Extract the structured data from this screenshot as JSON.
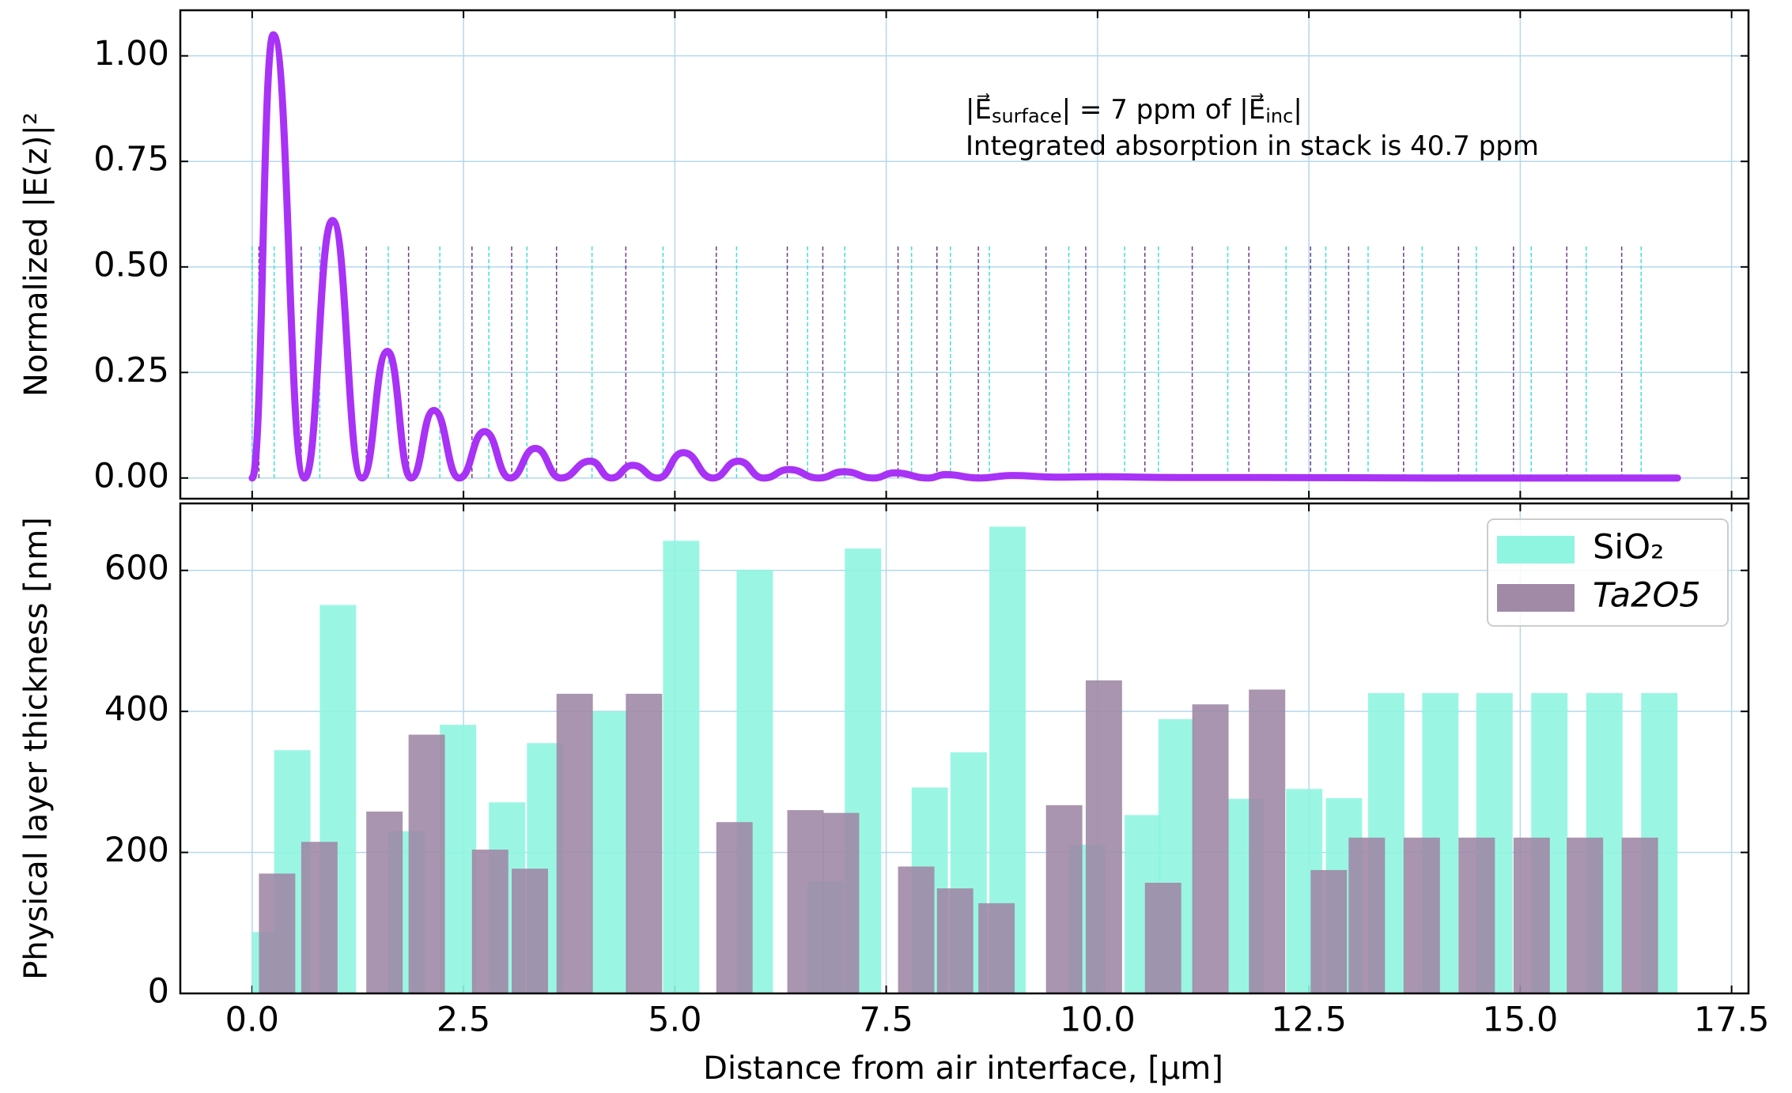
{
  "chart_data": [
    {
      "type": "line",
      "ylabel": "Normalized |E(z)|²",
      "annotation": [
        [
          "|E⃗",
          "surface",
          "| = 7 ppm of |E⃗",
          "inc",
          "|"
        ],
        [
          "Integrated absorption in stack is 40.7 ppm"
        ]
      ],
      "x": [
        0,
        0.25,
        0.62,
        0.95,
        1.3,
        1.6,
        1.88,
        2.15,
        2.45,
        2.75,
        3.05,
        3.35,
        3.65,
        4.0,
        4.25,
        4.5,
        4.8,
        5.1,
        5.45,
        5.75,
        6.05,
        6.35,
        6.7,
        7.0,
        7.35,
        7.6,
        8.0,
        8.2,
        8.6,
        9.0,
        9.5,
        10.0,
        11.0,
        12.0,
        14.0,
        16.86
      ],
      "series": [
        {
          "color": "#a832f5",
          "values": [
            0,
            1.05,
            0,
            0.61,
            0,
            0.3,
            0,
            0.16,
            0,
            0.11,
            0,
            0.07,
            0,
            0.04,
            0,
            0.03,
            0,
            0.06,
            0,
            0.04,
            0,
            0.02,
            0,
            0.015,
            0,
            0.012,
            0,
            0.008,
            0,
            0.006,
            0.002,
            0.003,
            0.001,
            0.001,
            0,
            0
          ]
        }
      ],
      "boundary_colors": [
        "#40e0d0",
        "#6b3a8a"
      ],
      "xlim": [
        -0.85,
        17.7
      ],
      "xticks": [
        0,
        2.5,
        5,
        7.5,
        10,
        12.5,
        15,
        17.5
      ],
      "ylim": [
        -0.049,
        1.108
      ],
      "yticks": [
        {
          "value": 0,
          "label": "0.00"
        },
        {
          "value": 0.25,
          "label": "0.25"
        },
        {
          "value": 0.5,
          "label": "0.50"
        },
        {
          "value": 0.75,
          "label": "0.75"
        },
        {
          "value": 1,
          "label": "1.00"
        }
      ],
      "grid": true
    },
    {
      "type": "bar",
      "xlabel": "Distance from air interface, [μm]",
      "ylabel": "Physical layer thickness [nm]",
      "series": [
        {
          "name": "SiO₂",
          "color": "#8ff5e0",
          "x": [
            0.0,
            0.26,
            0.8,
            1.61,
            2.22,
            2.8,
            3.25,
            4.02,
            4.86,
            5.73,
            6.57,
            7.01,
            7.8,
            8.26,
            8.72,
            9.66,
            10.32,
            10.72,
            11.54,
            12.23,
            12.7,
            13.2,
            13.84,
            14.48,
            15.13,
            15.78,
            16.43
          ],
          "values": [
            87,
            345,
            551,
            230,
            381,
            271,
            355,
            400,
            642,
            601,
            159,
            631,
            292,
            342,
            662,
            211,
            253,
            389,
            276,
            290,
            277,
            426,
            426,
            426,
            426,
            426,
            426
          ]
        },
        {
          "name": "Ta2O5",
          "color": "#a08aa6",
          "x": [
            0.08,
            0.58,
            1.35,
            1.85,
            2.6,
            3.07,
            3.6,
            4.42,
            5.49,
            6.33,
            6.75,
            7.64,
            8.1,
            8.59,
            9.39,
            9.86,
            10.56,
            11.12,
            11.79,
            12.52,
            12.97,
            13.62,
            14.27,
            14.92,
            15.55,
            16.2
          ],
          "values": [
            170,
            215,
            258,
            367,
            204,
            177,
            425,
            425,
            243,
            260,
            256,
            180,
            149,
            128,
            267,
            444,
            157,
            410,
            431,
            175,
            221,
            221,
            221,
            221,
            221,
            221
          ]
        }
      ],
      "xlim": [
        -0.85,
        17.7
      ],
      "xticks": [
        {
          "value": 0,
          "label": "0.0"
        },
        2.5,
        {
          "value": 5,
          "label": "5.0"
        },
        7.5,
        {
          "value": 10,
          "label": "10.0"
        },
        12.5,
        {
          "value": 15,
          "label": "15.0"
        },
        17.5
      ],
      "ylim": [
        0,
        695
      ],
      "yticks": [
        0,
        200,
        400,
        600
      ],
      "grid": true,
      "legend": "upper right"
    }
  ]
}
